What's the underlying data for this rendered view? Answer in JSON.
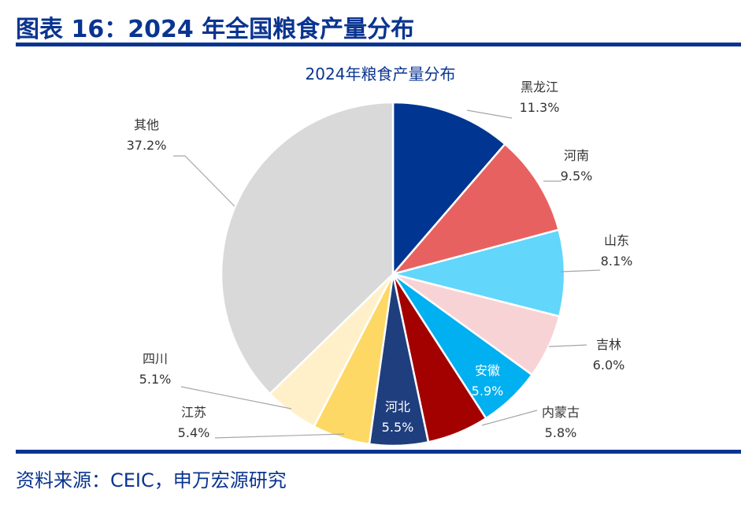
{
  "header": {
    "title": "图表 16：2024 年全国粮食产量分布"
  },
  "footer": {
    "source": "资料来源：CEIC，申万宏源研究"
  },
  "colors": {
    "accent": "#0a3491"
  },
  "chart_data": {
    "type": "pie",
    "title": "2024年粮食产量分布",
    "unit": "%",
    "start": "top, clockwise",
    "slices": [
      {
        "label": "黑龙江",
        "value": 11.3,
        "display": "11.3%",
        "color": "#003591"
      },
      {
        "label": "河南",
        "value": 9.5,
        "display": "9.5%",
        "color": "#e86161"
      },
      {
        "label": "山东",
        "value": 8.1,
        "display": "8.1%",
        "color": "#62d6fb"
      },
      {
        "label": "吉林",
        "value": 6.0,
        "display": "6.0%",
        "color": "#f8d3d5"
      },
      {
        "label": "安徽",
        "value": 5.9,
        "display": "5.9%",
        "color": "#00b0f0"
      },
      {
        "label": "内蒙古",
        "value": 5.8,
        "display": "5.8%",
        "color": "#a30000"
      },
      {
        "label": "河北",
        "value": 5.5,
        "display": "5.5%",
        "color": "#1f3e7e"
      },
      {
        "label": "江苏",
        "value": 5.4,
        "display": "5.4%",
        "color": "#fdd865"
      },
      {
        "label": "四川",
        "value": 5.1,
        "display": "5.1%",
        "color": "#fff0c9"
      },
      {
        "label": "其他",
        "value": 37.2,
        "display": "37.2%",
        "color": "#d9d9d9"
      }
    ]
  }
}
